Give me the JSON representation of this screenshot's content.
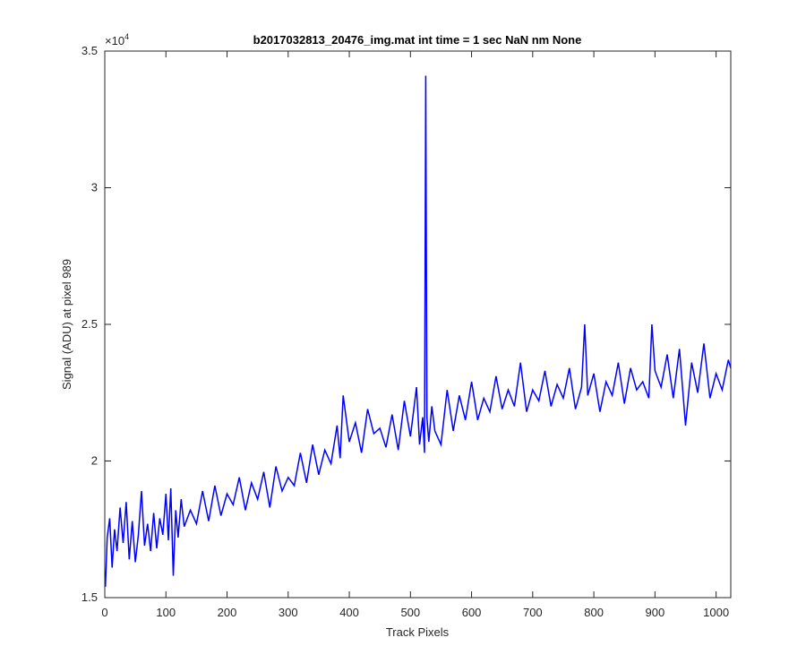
{
  "chart_data": {
    "type": "line",
    "title": "b2017032813_20476_img.mat int time = 1 sec  NaN nm None",
    "xlabel": "Track Pixels",
    "ylabel": "Signal (ADU) at pixel 989",
    "xlim": [
      0,
      1024
    ],
    "ylim": [
      15000,
      35000
    ],
    "xticks": [
      0,
      100,
      200,
      300,
      400,
      500,
      600,
      700,
      800,
      900,
      1000
    ],
    "yticks": [
      15000,
      20000,
      25000,
      30000,
      35000
    ],
    "ytick_labels": [
      "1.5",
      "2",
      "2.5",
      "3",
      "3.5"
    ],
    "y_exponent_label": "×10",
    "y_exponent_power": "4",
    "grid": false,
    "line_color": "#0000ff",
    "series": [
      {
        "x": [
          1,
          4,
          8,
          12,
          16,
          20,
          25,
          30,
          35,
          40,
          45,
          50,
          55,
          60,
          65,
          70,
          75,
          80,
          85,
          90,
          95,
          100,
          104,
          108,
          112,
          116,
          120,
          125,
          130,
          140,
          150,
          160,
          170,
          180,
          190,
          200,
          210,
          220,
          230,
          240,
          250,
          260,
          270,
          280,
          290,
          300,
          310,
          320,
          330,
          340,
          350,
          360,
          370,
          380,
          385,
          390,
          400,
          410,
          420,
          430,
          440,
          450,
          460,
          470,
          480,
          490,
          500,
          510,
          515,
          520,
          523,
          525,
          527,
          530,
          535,
          540,
          550,
          560,
          570,
          580,
          590,
          600,
          610,
          620,
          630,
          640,
          650,
          660,
          670,
          680,
          690,
          700,
          710,
          720,
          730,
          740,
          750,
          760,
          770,
          780,
          785,
          790,
          800,
          810,
          820,
          830,
          840,
          850,
          860,
          870,
          880,
          890,
          895,
          900,
          910,
          920,
          930,
          940,
          950,
          960,
          970,
          980,
          990,
          1000,
          1010,
          1020,
          1024
        ],
        "values": [
          15400,
          17200,
          17900,
          16100,
          17500,
          16700,
          18300,
          17000,
          18500,
          16400,
          17800,
          16300,
          17300,
          18900,
          16900,
          17700,
          16700,
          18100,
          16800,
          17900,
          17300,
          18800,
          17100,
          19000,
          15800,
          18200,
          17200,
          18600,
          17600,
          18200,
          17700,
          18900,
          17800,
          19100,
          18000,
          18800,
          18400,
          19400,
          18200,
          19200,
          18600,
          19600,
          18300,
          19800,
          18900,
          19400,
          19100,
          20300,
          19200,
          20600,
          19500,
          20400,
          19900,
          21300,
          20100,
          22400,
          20700,
          21400,
          20300,
          21900,
          21000,
          21200,
          20500,
          21700,
          20400,
          22200,
          20900,
          22700,
          20600,
          21600,
          20300,
          34100,
          21600,
          20700,
          22000,
          21100,
          20600,
          22600,
          21100,
          22400,
          21500,
          22900,
          21500,
          22300,
          21800,
          23100,
          21900,
          22600,
          22000,
          23600,
          21800,
          22600,
          22200,
          23300,
          22000,
          22800,
          22300,
          23400,
          21900,
          22700,
          25000,
          22400,
          23200,
          21800,
          22900,
          22400,
          23600,
          22100,
          23400,
          22600,
          22900,
          22300,
          25000,
          23300,
          22700,
          23900,
          22300,
          24100,
          21300,
          23600,
          22500,
          24300,
          22300,
          23200,
          22600,
          23700,
          23400
        ]
      }
    ]
  }
}
